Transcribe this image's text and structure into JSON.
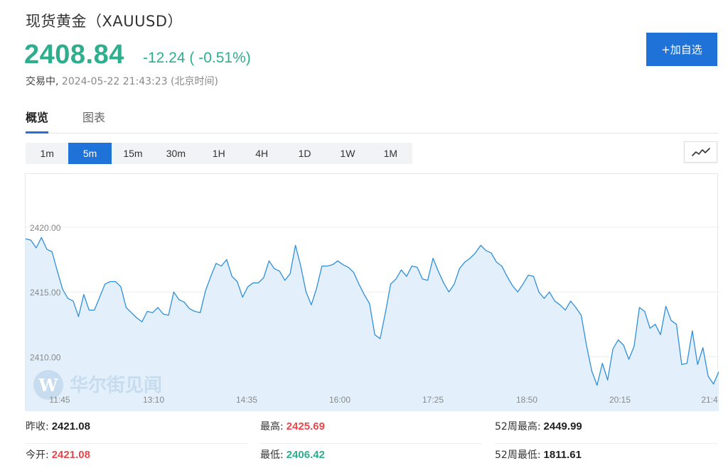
{
  "header": {
    "title": "现货黄金（XAUUSD）",
    "price": "2408.84",
    "change": "-12.24 ( -0.51%)",
    "status_state": "交易中,",
    "status_time": "2024-05-22 21:43:23 (北京时间)",
    "add_button": "+加自选"
  },
  "tabs": [
    {
      "label": "概览",
      "active": true
    },
    {
      "label": "图表",
      "active": false
    }
  ],
  "periods": [
    {
      "label": "1m",
      "active": false
    },
    {
      "label": "5m",
      "active": true
    },
    {
      "label": "15m",
      "active": false
    },
    {
      "label": "30m",
      "active": false
    },
    {
      "label": "1H",
      "active": false
    },
    {
      "label": "4H",
      "active": false
    },
    {
      "label": "1D",
      "active": false
    },
    {
      "label": "1W",
      "active": false
    },
    {
      "label": "1M",
      "active": false
    }
  ],
  "chart_type_icon": "line-chart-icon",
  "watermark": "华尔街见闻",
  "colors": {
    "accent": "#1f73d8",
    "up": "#e5484d",
    "down": "#2fae8d",
    "line": "#2f8fdc",
    "fill": "#e3f0fb"
  },
  "chart_data": {
    "type": "area",
    "title": "",
    "xlabel": "",
    "ylabel": "",
    "ylim": [
      2405.8,
      2424.1
    ],
    "y_ticks": [
      2410.0,
      2415.0,
      2420.0
    ],
    "y_tick_labels": [
      "2410.00",
      "2415.00",
      "2420.00"
    ],
    "x_tick_labels": [
      "11:45",
      "13:10",
      "14:35",
      "16:00",
      "17:25",
      "18:50",
      "20:15",
      "21:4"
    ],
    "grid": true,
    "series": [
      {
        "values": [
          2419.1,
          2419.0,
          2418.4,
          2419.2,
          2418.3,
          2418.1,
          2416.6,
          2415.2,
          2414.5,
          2414.3,
          2413.1,
          2414.8,
          2413.6,
          2413.6,
          2414.6,
          2415.6,
          2415.8,
          2415.8,
          2415.4,
          2413.8,
          2413.4,
          2413.0,
          2412.7,
          2413.5,
          2413.4,
          2413.8,
          2413.3,
          2413.2,
          2415.0,
          2414.4,
          2414.2,
          2413.7,
          2413.5,
          2413.4,
          2415.1,
          2416.2,
          2417.2,
          2417.0,
          2417.5,
          2416.2,
          2415.8,
          2414.6,
          2415.4,
          2415.7,
          2415.7,
          2416.1,
          2417.4,
          2416.8,
          2416.6,
          2415.9,
          2416.4,
          2418.6,
          2417.0,
          2415.0,
          2414.0,
          2415.3,
          2417.0,
          2417.0,
          2417.1,
          2417.4,
          2417.1,
          2416.9,
          2416.5,
          2415.6,
          2414.8,
          2414.1,
          2411.7,
          2411.4,
          2413.4,
          2415.6,
          2416.0,
          2416.7,
          2416.2,
          2417.0,
          2416.9,
          2416.0,
          2415.9,
          2417.6,
          2416.6,
          2415.7,
          2415.0,
          2415.6,
          2416.8,
          2417.3,
          2417.6,
          2418.0,
          2418.6,
          2418.2,
          2418.0,
          2417.3,
          2417.0,
          2416.2,
          2415.5,
          2415.0,
          2415.6,
          2416.3,
          2416.2,
          2415.0,
          2414.5,
          2415.0,
          2414.3,
          2414.0,
          2413.6,
          2414.3,
          2413.8,
          2413.2,
          2410.9,
          2408.9,
          2407.8,
          2409.5,
          2408.2,
          2410.6,
          2411.3,
          2410.9,
          2409.8,
          2410.8,
          2413.8,
          2413.5,
          2412.2,
          2412.5,
          2411.7,
          2413.9,
          2412.8,
          2412.5,
          2409.4,
          2409.5,
          2412.0,
          2409.4,
          2410.7,
          2408.5,
          2407.9,
          2408.84
        ]
      }
    ]
  },
  "stats": {
    "row1": [
      {
        "label": "昨收:",
        "value": "2421.08",
        "tone": "neutral"
      },
      {
        "label": "最高:",
        "value": "2425.69",
        "tone": "up"
      },
      {
        "label": "52周最高:",
        "value": "2449.99",
        "tone": "neutral"
      }
    ],
    "row2": [
      {
        "label": "今开:",
        "value": "2421.08",
        "tone": "up"
      },
      {
        "label": "最低:",
        "value": "2406.42",
        "tone": "down"
      },
      {
        "label": "52周最低:",
        "value": "1811.61",
        "tone": "neutral"
      }
    ]
  }
}
